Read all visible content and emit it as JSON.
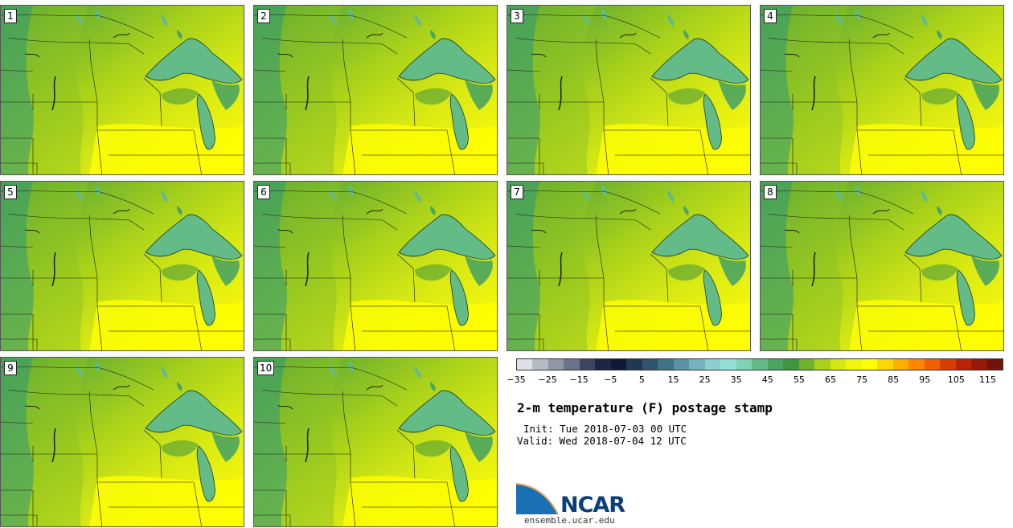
{
  "panels": [
    {
      "label": "1"
    },
    {
      "label": "2"
    },
    {
      "label": "3"
    },
    {
      "label": "4"
    },
    {
      "label": "5"
    },
    {
      "label": "6"
    },
    {
      "label": "7"
    },
    {
      "label": "8"
    },
    {
      "label": "9"
    },
    {
      "label": "10"
    }
  ],
  "colorbar": {
    "ticks": [
      "−35",
      "−25",
      "−15",
      "−5",
      "5",
      "15",
      "25",
      "35",
      "45",
      "55",
      "65",
      "75",
      "85",
      "95",
      "105",
      "115"
    ],
    "colors": [
      "#dde1e6",
      "#b6bcc6",
      "#8f97a6",
      "#68738a",
      "#3b4660",
      "#1c2642",
      "#0e1a33",
      "#1f3a4e",
      "#2e5569",
      "#3f7286",
      "#5a93a3",
      "#75b3bc",
      "#8dcfd0",
      "#93e0d8",
      "#7fd2b4",
      "#63bb88",
      "#4aa460",
      "#3f963f",
      "#6fb22e",
      "#a8d11a",
      "#d6e814",
      "#f2f50c",
      "#ffff00",
      "#ffd700",
      "#ffae00",
      "#ff8600",
      "#f06000",
      "#d93c00",
      "#b82406",
      "#951a0a",
      "#6e1508"
    ]
  },
  "title": "2-m temperature (F) postage stamp",
  "init": "Init: Tue 2018-07-03 00 UTC",
  "valid": "Valid: Wed 2018-07-04 12 UTC",
  "logo": {
    "text": "NCAR"
  },
  "website": "ensemble.ucar.edu"
}
